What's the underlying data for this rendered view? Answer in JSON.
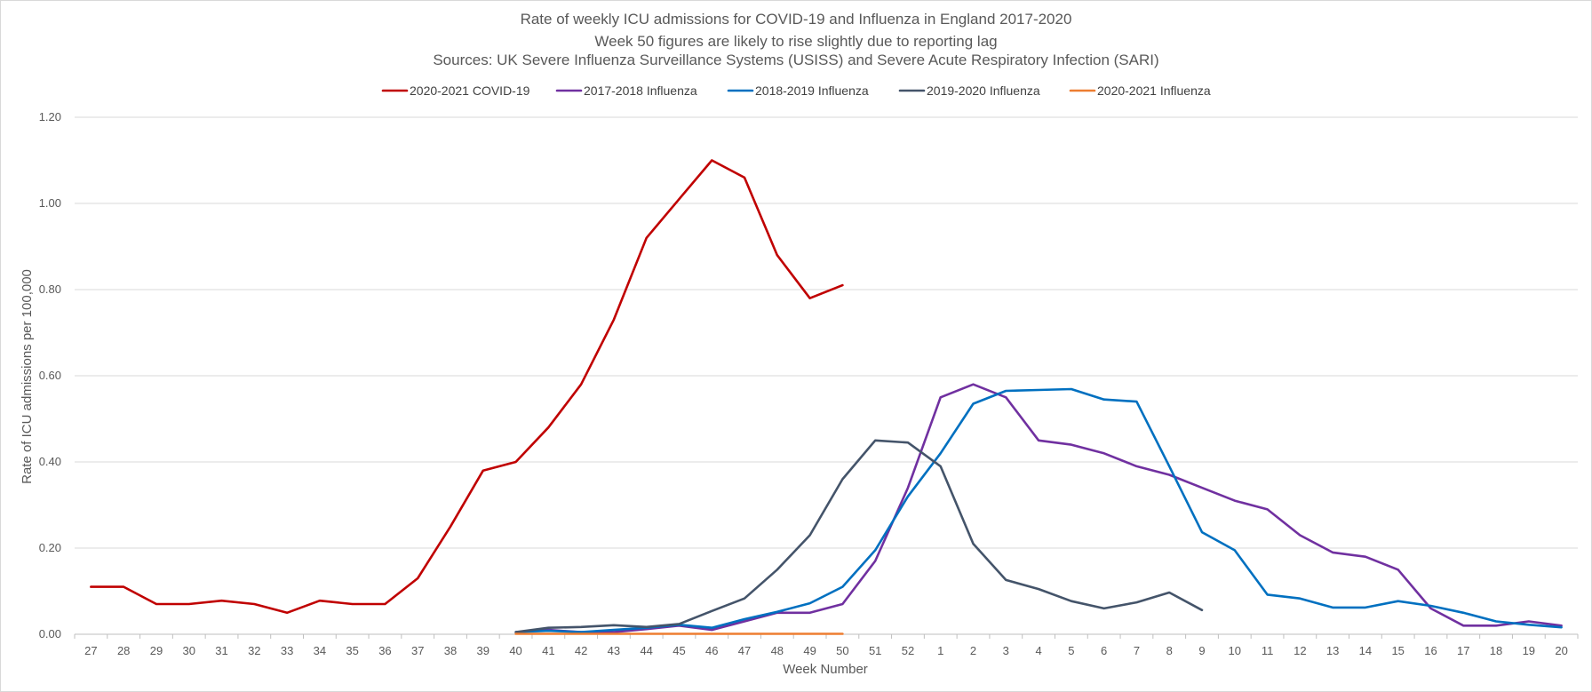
{
  "chart_data": {
    "type": "line",
    "title_lines": [
      "Rate of weekly ICU admissions for COVID-19 and Influenza in England 2017-2020",
      "Week 50 figures are likely to rise slightly due to reporting lag",
      "Sources: UK Severe Influenza Surveillance Systems (USISS) and Severe Acute Respiratory Infection (SARI)"
    ],
    "xlabel": "Week Number",
    "ylabel": "Rate of ICU admissions per 100,000",
    "ylim": [
      0,
      1.2
    ],
    "yticks": [
      "0.00",
      "0.20",
      "0.40",
      "0.60",
      "0.80",
      "1.00",
      "1.20"
    ],
    "grid": "horizontal",
    "legend_position": "top",
    "categories": [
      "27",
      "28",
      "29",
      "30",
      "31",
      "32",
      "33",
      "34",
      "35",
      "36",
      "37",
      "38",
      "39",
      "40",
      "41",
      "42",
      "43",
      "44",
      "45",
      "46",
      "47",
      "48",
      "49",
      "50",
      "51",
      "52",
      "1",
      "2",
      "3",
      "4",
      "5",
      "6",
      "7",
      "8",
      "9",
      "10",
      "11",
      "12",
      "13",
      "14",
      "15",
      "16",
      "17",
      "18",
      "19",
      "20"
    ],
    "series": [
      {
        "name": "2020-2021 COVID-19",
        "color": "#c00000",
        "values": [
          0.11,
          0.11,
          0.07,
          0.07,
          0.078,
          0.07,
          0.05,
          0.078,
          0.07,
          0.07,
          0.13,
          0.25,
          0.38,
          0.4,
          0.48,
          0.58,
          0.73,
          0.92,
          1.01,
          1.1,
          1.06,
          0.88,
          0.78,
          0.81,
          null,
          null,
          null,
          null,
          null,
          null,
          null,
          null,
          null,
          null,
          null,
          null,
          null,
          null,
          null,
          null,
          null,
          null,
          null,
          null,
          null,
          null
        ]
      },
      {
        "name": "2017-2018 Influenza",
        "color": "#7030a0",
        "values": [
          null,
          null,
          null,
          null,
          null,
          null,
          null,
          null,
          null,
          null,
          null,
          null,
          null,
          0.005,
          0.01,
          0.005,
          0.005,
          0.012,
          0.02,
          0.01,
          0.03,
          0.05,
          0.05,
          0.07,
          0.17,
          0.34,
          0.55,
          0.58,
          0.55,
          0.45,
          0.44,
          0.42,
          0.39,
          0.37,
          0.34,
          0.31,
          0.29,
          0.23,
          0.19,
          0.18,
          0.15,
          0.06,
          0.02,
          0.02,
          0.03,
          0.02
        ]
      },
      {
        "name": "2018-2019 Influenza",
        "color": "#0070c0",
        "values": [
          null,
          null,
          null,
          null,
          null,
          null,
          null,
          null,
          null,
          null,
          null,
          null,
          null,
          0.005,
          0.008,
          0.005,
          0.01,
          0.015,
          0.022,
          0.015,
          0.035,
          0.052,
          0.072,
          0.11,
          0.195,
          0.32,
          0.42,
          0.535,
          0.565,
          0.567,
          0.569,
          0.545,
          0.54,
          0.39,
          0.237,
          0.195,
          0.092,
          0.083,
          0.062,
          0.062,
          0.077,
          0.066,
          0.05,
          0.03,
          0.022,
          0.016
        ]
      },
      {
        "name": "2019-2020 Influenza",
        "color": "#44546a",
        "values": [
          null,
          null,
          null,
          null,
          null,
          null,
          null,
          null,
          null,
          null,
          null,
          null,
          null,
          0.005,
          0.015,
          0.017,
          0.021,
          0.017,
          0.024,
          0.054,
          0.083,
          0.15,
          0.23,
          0.36,
          0.45,
          0.445,
          0.39,
          0.21,
          0.126,
          0.105,
          0.077,
          0.06,
          0.074,
          0.097,
          0.056,
          null,
          null,
          null,
          null,
          null,
          null,
          null,
          null,
          null,
          null,
          null
        ]
      },
      {
        "name": "2020-2021 Influenza",
        "color": "#ed7d31",
        "values": [
          null,
          null,
          null,
          null,
          null,
          null,
          null,
          null,
          null,
          null,
          null,
          null,
          null,
          0.001,
          0.001,
          0.001,
          0.001,
          0.001,
          0.001,
          0.001,
          0.001,
          0.001,
          0.001,
          0.001,
          null,
          null,
          null,
          null,
          null,
          null,
          null,
          null,
          null,
          null,
          null,
          null,
          null,
          null,
          null,
          null,
          null,
          null,
          null,
          null,
          null,
          null
        ]
      }
    ]
  }
}
